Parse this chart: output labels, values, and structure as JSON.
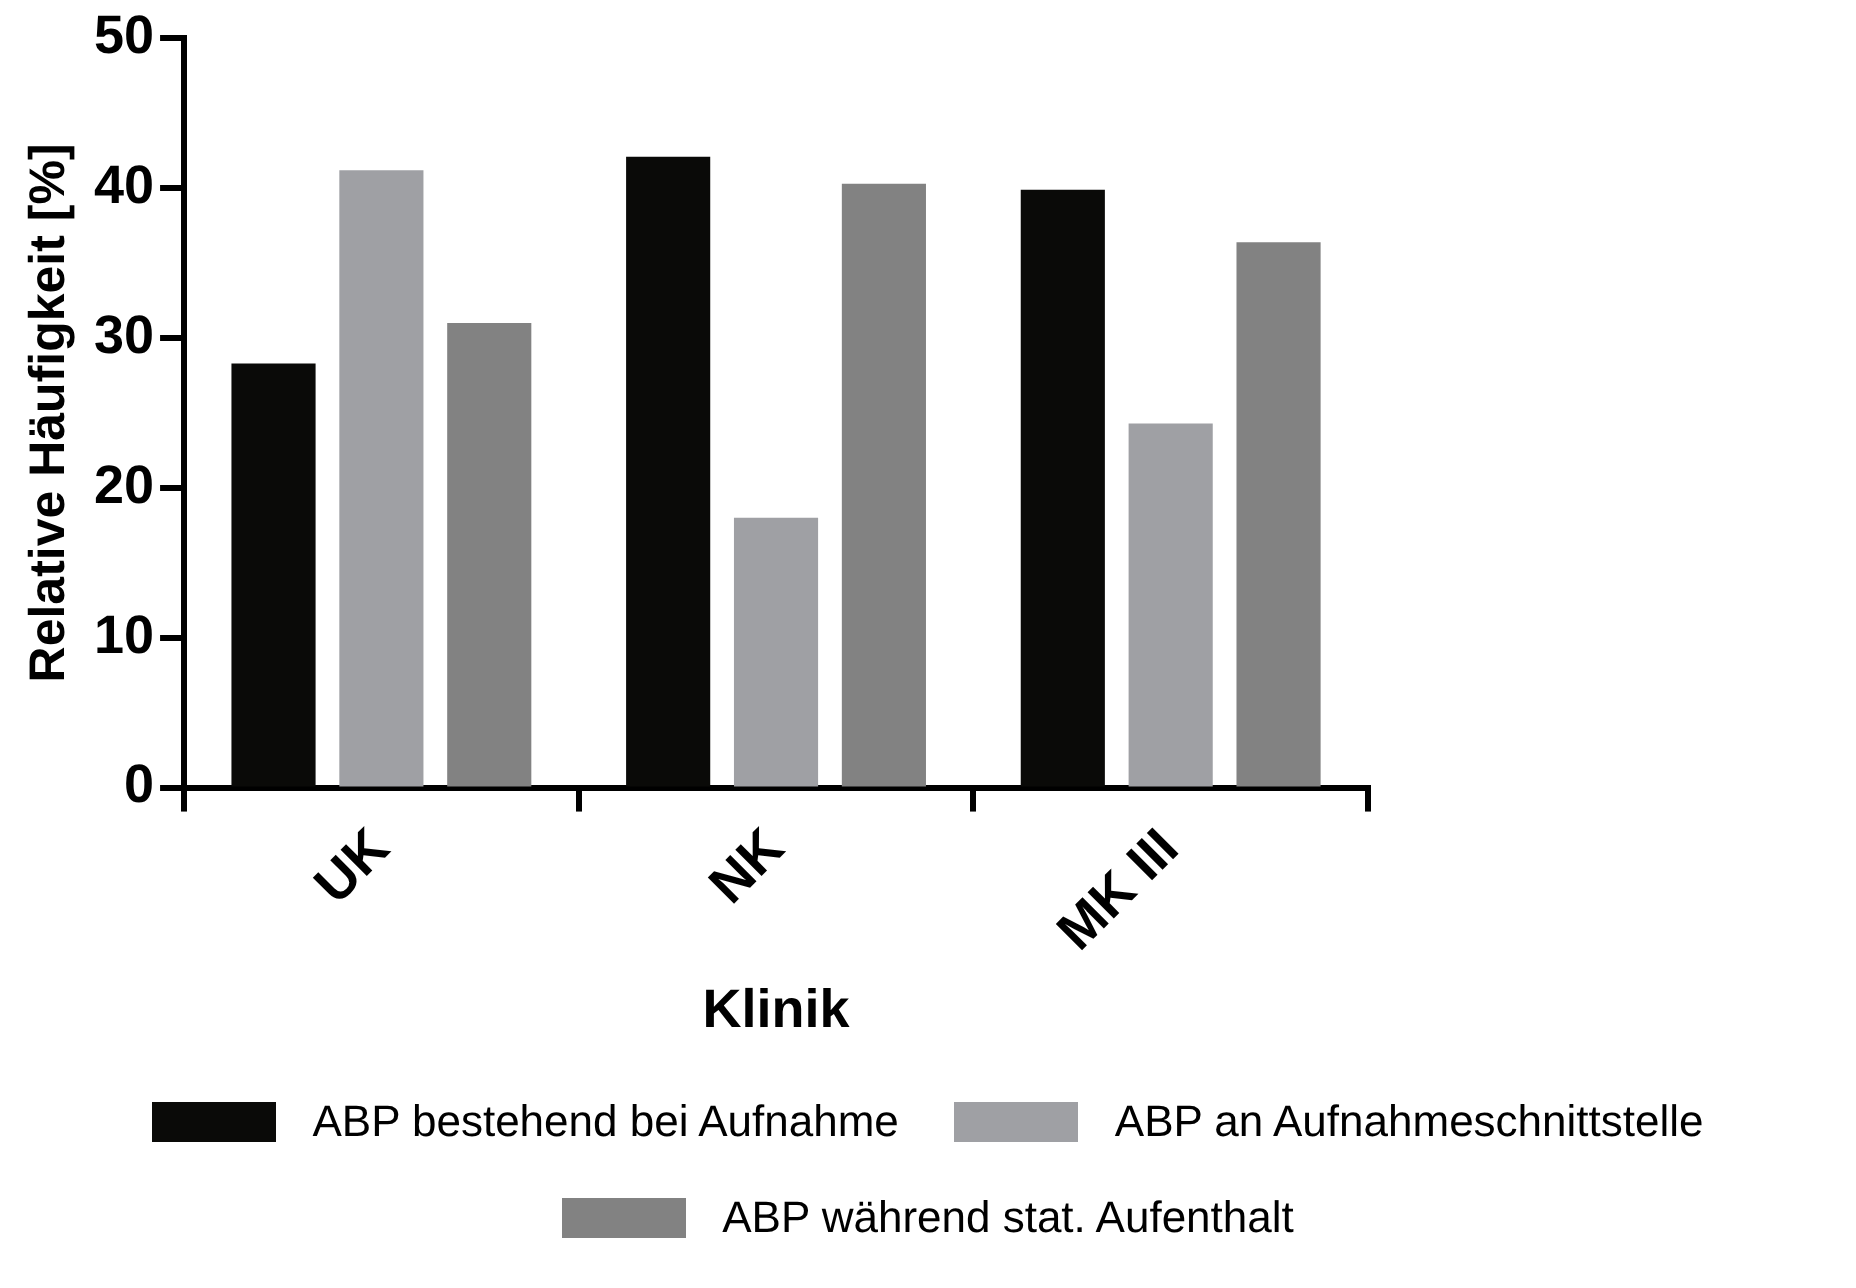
{
  "chart_data": {
    "type": "bar",
    "xlabel": "Klinik",
    "ylabel": "Relative Häufigkeit [%]",
    "categories": [
      "UK",
      "NK",
      "MK III"
    ],
    "series": [
      {
        "name": "ABP bestehend bei Aufnahme",
        "color": "#0a0a08",
        "values": [
          28.3,
          42.1,
          39.9
        ]
      },
      {
        "name": "ABP an Aufnahmeschnittstelle",
        "color": "#9fa0a4",
        "values": [
          41.2,
          18.0,
          24.3
        ]
      },
      {
        "name": "ABP während stat. Aufenthalt",
        "color": "#828282",
        "values": [
          31.0,
          40.3,
          36.4
        ]
      }
    ],
    "ylim": [
      0,
      50
    ],
    "yticks": [
      0,
      10,
      20,
      30,
      40,
      50
    ],
    "grid": false,
    "legend": "bottom"
  }
}
